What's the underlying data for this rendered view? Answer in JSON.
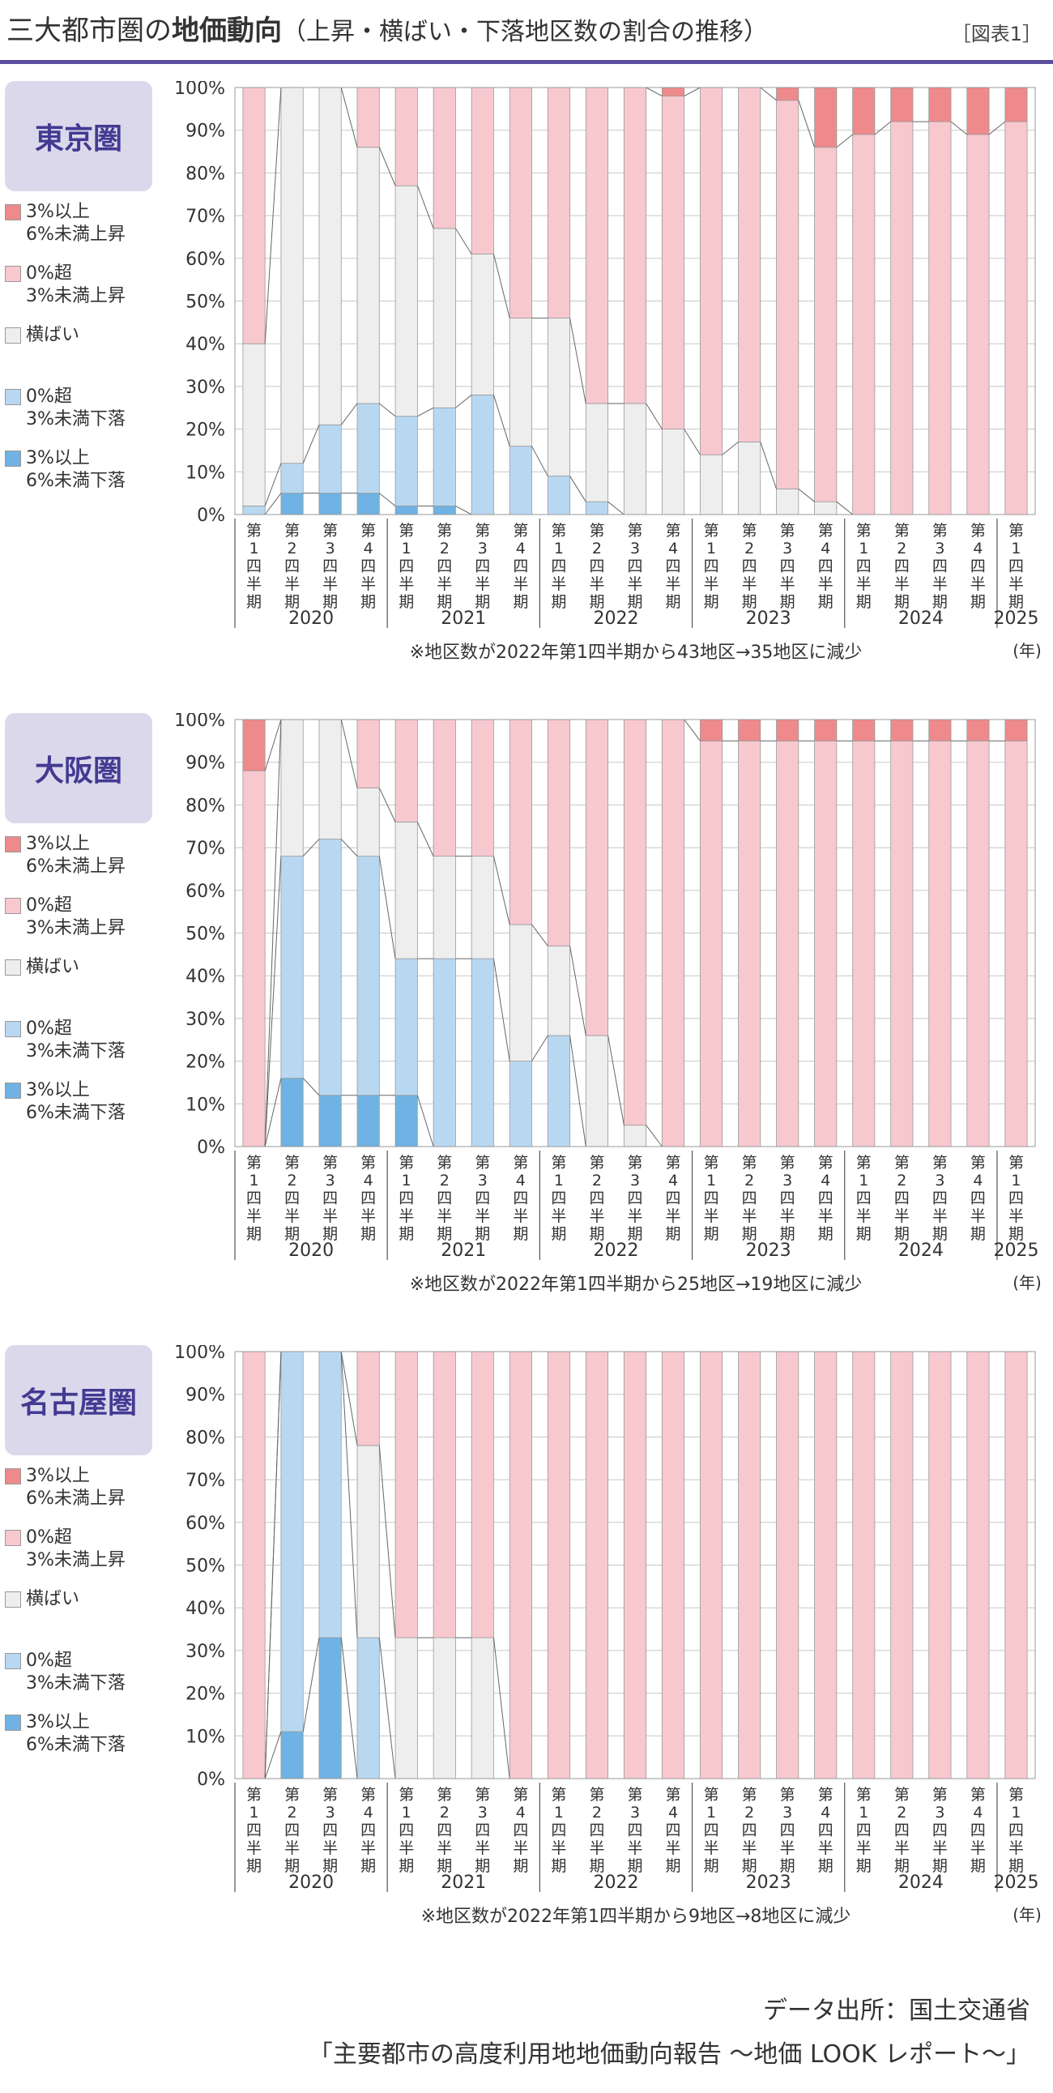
{
  "header": {
    "title_prefix": "三大都市圏の",
    "title_bold": "地価動向",
    "title_suffix": "（上昇・横ばい・下落地区数の割合の推移）",
    "figure_label": "［図表1］"
  },
  "legend": [
    {
      "label": "3%以上\n6%未満上昇",
      "color": "#ee8a8c"
    },
    {
      "label": "0%超\n3%未満上昇",
      "color": "#f8c8cf"
    },
    {
      "label": "横ばい",
      "color": "#eeeeee"
    },
    {
      "label": "0%超\n3%未満下落",
      "color": "#b8d8f2"
    },
    {
      "label": "3%以上\n6%未満下落",
      "color": "#6fb2e3"
    }
  ],
  "quarter_labels": [
    "第1四半期",
    "第2四半期",
    "第3四半期",
    "第4四半期",
    "第1四半期",
    "第2四半期",
    "第3四半期",
    "第4四半期",
    "第1四半期",
    "第2四半期",
    "第3四半期",
    "第4四半期",
    "第1四半期",
    "第2四半期",
    "第3四半期",
    "第4四半期",
    "第1四半期",
    "第2四半期",
    "第3四半期",
    "第4四半期",
    "第1四半期"
  ],
  "year_labels": [
    "2020",
    "2021",
    "2022",
    "2023",
    "2024",
    "2025"
  ],
  "year_unit": "(年)",
  "y_ticks": [
    "0%",
    "10%",
    "20%",
    "30%",
    "40%",
    "50%",
    "60%",
    "70%",
    "80%",
    "90%",
    "100%"
  ],
  "chart_data": [
    {
      "type": "bar",
      "stacked": true,
      "region": "東京圏",
      "note": "※地区数が2022年第1四半期から43地区→35地区に減少",
      "ylim": [
        0,
        100
      ],
      "series_order_bottom_to_top": [
        "3%以上6%未満下落",
        "0%超3%未満下落",
        "横ばい",
        "0%超3%未満上昇",
        "3%以上6%未満上昇"
      ],
      "series": [
        {
          "name": "3%以上6%未満下落",
          "values": [
            0,
            5,
            5,
            5,
            2,
            2,
            0,
            0,
            0,
            0,
            0,
            0,
            0,
            0,
            0,
            0,
            0,
            0,
            0,
            0,
            0
          ]
        },
        {
          "name": "0%超3%未満下落",
          "values": [
            2,
            7,
            16,
            21,
            21,
            23,
            28,
            16,
            9,
            3,
            0,
            0,
            0,
            0,
            0,
            0,
            0,
            0,
            0,
            0,
            0
          ]
        },
        {
          "name": "横ばい",
          "values": [
            38,
            88,
            79,
            60,
            54,
            42,
            33,
            30,
            37,
            23,
            26,
            20,
            14,
            17,
            6,
            3,
            0,
            0,
            0,
            0,
            0
          ]
        },
        {
          "name": "0%超3%未満上昇",
          "values": [
            60,
            0,
            0,
            14,
            23,
            33,
            39,
            54,
            54,
            74,
            74,
            78,
            86,
            83,
            91,
            83,
            89,
            92,
            92,
            89,
            92
          ]
        },
        {
          "name": "3%以上6%未満上昇",
          "values": [
            0,
            0,
            0,
            0,
            0,
            0,
            0,
            0,
            0,
            0,
            0,
            2,
            0,
            0,
            3,
            14,
            11,
            8,
            8,
            11,
            8
          ]
        }
      ]
    },
    {
      "type": "bar",
      "stacked": true,
      "region": "大阪圏",
      "note": "※地区数が2022年第1四半期から25地区→19地区に減少",
      "ylim": [
        0,
        100
      ],
      "series_order_bottom_to_top": [
        "3%以上6%未満下落",
        "0%超3%未満下落",
        "横ばい",
        "0%超3%未満上昇",
        "3%以上6%未満上昇"
      ],
      "series": [
        {
          "name": "3%以上6%未満下落",
          "values": [
            0,
            16,
            12,
            12,
            12,
            0,
            0,
            0,
            0,
            0,
            0,
            0,
            0,
            0,
            0,
            0,
            0,
            0,
            0,
            0,
            0
          ]
        },
        {
          "name": "0%超3%未満下落",
          "values": [
            0,
            52,
            60,
            56,
            32,
            44,
            44,
            20,
            26,
            0,
            0,
            0,
            0,
            0,
            0,
            0,
            0,
            0,
            0,
            0,
            0
          ]
        },
        {
          "name": "横ばい",
          "values": [
            0,
            32,
            28,
            16,
            32,
            24,
            24,
            32,
            21,
            26,
            5,
            0,
            0,
            0,
            0,
            0,
            0,
            0,
            0,
            0,
            0
          ]
        },
        {
          "name": "0%超3%未満上昇",
          "values": [
            88,
            0,
            0,
            16,
            24,
            32,
            32,
            48,
            53,
            74,
            95,
            100,
            95,
            95,
            95,
            95,
            95,
            95,
            95,
            95,
            95
          ]
        },
        {
          "name": "3%以上6%未満上昇",
          "values": [
            12,
            0,
            0,
            0,
            0,
            0,
            0,
            0,
            0,
            0,
            0,
            0,
            5,
            5,
            5,
            5,
            5,
            5,
            5,
            5,
            5
          ]
        }
      ]
    },
    {
      "type": "bar",
      "stacked": true,
      "region": "名古屋圏",
      "note": "※地区数が2022年第1四半期から9地区→8地区に減少",
      "ylim": [
        0,
        100
      ],
      "series_order_bottom_to_top": [
        "3%以上6%未満下落",
        "0%超3%未満下落",
        "横ばい",
        "0%超3%未満上昇",
        "3%以上6%未満上昇"
      ],
      "series": [
        {
          "name": "3%以上6%未満下落",
          "values": [
            0,
            11,
            33,
            0,
            0,
            0,
            0,
            0,
            0,
            0,
            0,
            0,
            0,
            0,
            0,
            0,
            0,
            0,
            0,
            0,
            0
          ]
        },
        {
          "name": "0%超3%未満下落",
          "values": [
            0,
            89,
            67,
            33,
            0,
            0,
            0,
            0,
            0,
            0,
            0,
            0,
            0,
            0,
            0,
            0,
            0,
            0,
            0,
            0,
            0
          ]
        },
        {
          "name": "横ばい",
          "values": [
            0,
            0,
            0,
            45,
            33,
            33,
            33,
            0,
            0,
            0,
            0,
            0,
            0,
            0,
            0,
            0,
            0,
            0,
            0,
            0,
            0
          ]
        },
        {
          "name": "0%超3%未満上昇",
          "values": [
            100,
            0,
            0,
            22,
            67,
            67,
            67,
            100,
            100,
            100,
            100,
            100,
            100,
            100,
            100,
            100,
            100,
            100,
            100,
            100,
            100
          ]
        },
        {
          "name": "3%以上6%未満上昇",
          "values": [
            0,
            0,
            0,
            0,
            0,
            0,
            0,
            0,
            0,
            0,
            0,
            0,
            0,
            0,
            0,
            0,
            0,
            0,
            0,
            0,
            0
          ]
        }
      ]
    }
  ],
  "footer": {
    "source": "データ出所：国土交通省",
    "report": "「主要都市の高度利用地地価動向報告 ～地価 LOOK レポート～」"
  }
}
